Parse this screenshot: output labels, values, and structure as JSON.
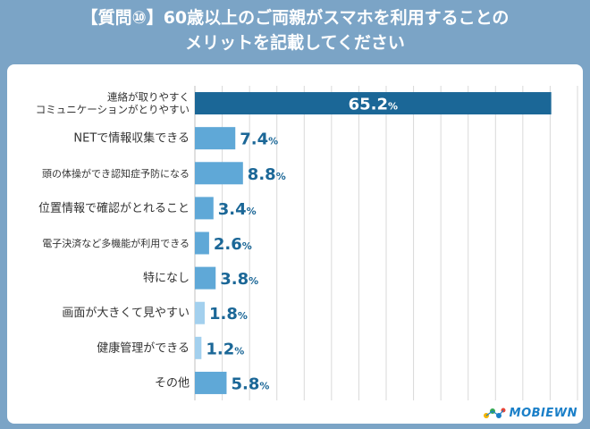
{
  "title": {
    "line1": "【質問⑩】60歳以上のご両親がスマホを利用することの",
    "line2": "メリットを記載してください"
  },
  "logo": {
    "text": "MOBIEWN"
  },
  "colors": {
    "frame": "#7ba4c6",
    "top_bar": "#1b6797",
    "bar": "#5fa8d7",
    "bar_light": "#a3d0ee",
    "value_text": "#1b6797",
    "label_text": "#333333",
    "grid": "#d9d9d9"
  },
  "chart_data": {
    "type": "bar",
    "orientation": "horizontal",
    "title": "【質問⑩】60歳以上のご両親がスマホを利用することのメリットを記載してください",
    "categories": [
      [
        "連絡が取りやすく",
        "コミュニケーションがとりやすい"
      ],
      [
        "NETで情報収集できる"
      ],
      [
        "頭の体操ができ認知症予防になる"
      ],
      [
        "位置情報で確認がとれること"
      ],
      [
        "電子決済など多機能が利用できる"
      ],
      [
        "特になし"
      ],
      [
        "画面が大きくて見やすい"
      ],
      [
        "健康管理ができる"
      ],
      [
        "その他"
      ]
    ],
    "values": [
      65.2,
      7.4,
      8.8,
      3.4,
      2.6,
      3.8,
      1.8,
      1.2,
      5.8
    ],
    "value_labels": [
      "65.2",
      "7.4",
      "8.8",
      "3.4",
      "2.6",
      "3.8",
      "1.8",
      "1.2",
      "5.8"
    ],
    "unit": "%",
    "xlim": [
      0,
      70
    ],
    "gridlines": [
      5,
      10,
      15,
      20,
      25,
      30,
      35,
      40,
      45,
      50,
      55,
      60,
      65,
      70
    ],
    "grid": true,
    "legend": "none"
  }
}
